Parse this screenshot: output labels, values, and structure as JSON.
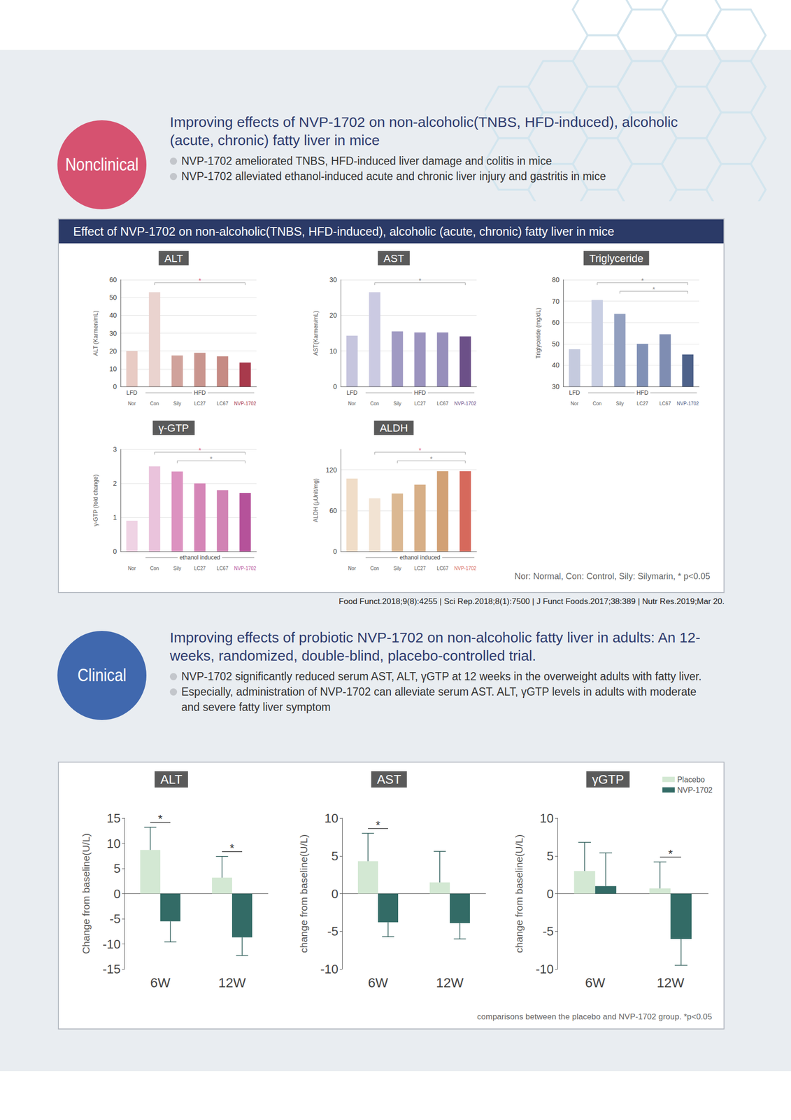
{
  "document": {
    "nonclinical": {
      "badge": "Nonclinical",
      "heading": "Improving effects of NVP-1702 on non-alcoholic(TNBS, HFD-induced), alcoholic (acute, chronic) fatty liver in mice",
      "bullets": [
        "NVP-1702 ameliorated TNBS, HFD-induced liver damage and colitis in mice",
        "NVP-1702 alleviated ethanol-induced acute and chronic liver injury and gastritis in mice"
      ],
      "panel_title": "Effect of NVP-1702 on non-alcoholic(TNBS, HFD-induced), alcoholic (acute, chronic) fatty liver in mice",
      "footnote": "Nor: Normal, Con: Control, Sily: Silymarin, * p<0.05",
      "references": "Food Funct.2018;9(8):4255 | Sci Rep.2018;8(1):7500 | J Funct Foods.2017;38:389 | Nutr Res.2019;Mar 20."
    },
    "clinical": {
      "badge": "Clinical",
      "heading": "Improving effects of probiotic NVP-1702 on non-alcoholic fatty liver in adults: An 12-weeks, randomized, double-blind, placebo-controlled trial.",
      "bullets": [
        "NVP-1702 significantly reduced serum AST, ALT, γGTP at 12 weeks in the overweight adults with fatty liver.",
        "Especially, administration of NVP-1702 can alleviate serum AST. ALT, γGTP levels in adults with moderate and severe fatty liver symptom"
      ],
      "footnote": "comparisons between the placebo and NVP-1702 group. *p<0.05"
    }
  },
  "chart_data": [
    {
      "type": "bar",
      "title": "ALT",
      "y_label": "ALT (Karmen/mL)",
      "categories": [
        "Nor",
        "Con",
        "Sily",
        "LC27",
        "LC67",
        "NVP-1702"
      ],
      "values": [
        20,
        53,
        17.5,
        19,
        17,
        13.5
      ],
      "colors": [
        "#e8cbc4",
        "#ead3cf",
        "#d0a29b",
        "#c9958e",
        "#c68b84",
        "#a83a4c"
      ],
      "ylim": [
        0,
        60
      ],
      "yticks": [
        0,
        10,
        20,
        30,
        40,
        50,
        60
      ],
      "grid": true,
      "groups": [
        {
          "label": "LFD",
          "categories": [
            "Nor"
          ]
        },
        {
          "label": "HFD",
          "categories": [
            "Con",
            "Sily",
            "LC27",
            "LC67",
            "NVP-1702"
          ]
        }
      ],
      "annotations": [
        {
          "text": "*",
          "from": "Con",
          "to": "NVP-1702",
          "color": "#e0607a"
        }
      ]
    },
    {
      "type": "bar",
      "title": "AST",
      "y_label": "AST(Karmen/mL)",
      "categories": [
        "Nor",
        "Con",
        "Sily",
        "LC27",
        "LC67",
        "NVP-1702"
      ],
      "values": [
        14.3,
        26.5,
        15.5,
        15.2,
        15.2,
        14.1
      ],
      "colors": [
        "#c6c5de",
        "#cbcae2",
        "#a09ac3",
        "#9c94bf",
        "#978fbb",
        "#6c5088"
      ],
      "ylim": [
        0,
        30
      ],
      "yticks": [
        0,
        10,
        20,
        30
      ],
      "grid": true,
      "groups": [
        {
          "label": "LFD",
          "categories": [
            "Nor"
          ]
        },
        {
          "label": "HFD",
          "categories": [
            "Con",
            "Sily",
            "LC27",
            "LC67",
            "NVP-1702"
          ]
        }
      ],
      "annotations": [
        {
          "text": "*",
          "from": "Con",
          "to": "NVP-1702",
          "color": "#888888"
        }
      ]
    },
    {
      "type": "bar",
      "title": "Triglyceride",
      "y_label": "Triglyceride (mg/dL)",
      "categories": [
        "Nor",
        "Con",
        "Sily",
        "LC27",
        "LC67",
        "NVP-1702"
      ],
      "values": [
        47.5,
        70.5,
        64,
        50,
        54.5,
        45
      ],
      "colors": [
        "#c5cade",
        "#c9cfe3",
        "#93a0c0",
        "#8191b6",
        "#7f8db2",
        "#4e628a"
      ],
      "ylim": [
        30,
        80
      ],
      "yticks": [
        30,
        40,
        50,
        60,
        70,
        80
      ],
      "grid": true,
      "groups": [
        {
          "label": "LFD",
          "categories": [
            "Nor"
          ]
        },
        {
          "label": "HFD",
          "categories": [
            "Con",
            "Sily",
            "LC27",
            "LC67",
            "NVP-1702"
          ]
        }
      ],
      "annotations": [
        {
          "text": "*",
          "from": "Con",
          "to": "NVP-1702",
          "color": "#888888"
        },
        {
          "text": "*",
          "from": "Sily",
          "to": "NVP-1702",
          "color": "#888888"
        }
      ]
    },
    {
      "type": "bar",
      "title": "γ-GTP",
      "y_label": "γ-GTP (fold change)",
      "categories": [
        "Nor",
        "Con",
        "Sily",
        "LC27",
        "LC67",
        "NVP-1702"
      ],
      "values": [
        0.9,
        2.5,
        2.35,
        2.0,
        1.8,
        1.72
      ],
      "colors": [
        "#efd3e4",
        "#eac3dc",
        "#dc92c0",
        "#d586b7",
        "#d183b4",
        "#b5529a"
      ],
      "ylim": [
        0,
        3
      ],
      "yticks": [
        0,
        1,
        2,
        3
      ],
      "grid": true,
      "groups": [
        {
          "label": "ethanol induced",
          "categories": [
            "Con",
            "Sily",
            "LC27",
            "LC67",
            "NVP-1702"
          ]
        }
      ],
      "annotations": [
        {
          "text": "*",
          "from": "Con",
          "to": "NVP-1702",
          "color": "#e0607a"
        },
        {
          "text": "*",
          "from": "Sily",
          "to": "NVP-1702",
          "color": "#888888"
        }
      ]
    },
    {
      "type": "bar",
      "title": "ALDH",
      "y_label": "ALDH (μUnit/mg)",
      "categories": [
        "Nor",
        "Con",
        "Sily",
        "LC27",
        "LC67",
        "NVP-1702"
      ],
      "values": [
        107,
        78,
        85,
        98,
        118,
        118
      ],
      "colors": [
        "#f0ddc8",
        "#f2e3d3",
        "#dbb892",
        "#d7af87",
        "#d2a175",
        "#d6695c"
      ],
      "ylim": [
        0,
        150
      ],
      "yticks": [
        0,
        60,
        120
      ],
      "grid": true,
      "groups": [
        {
          "label": "ethanol induced",
          "categories": [
            "Con",
            "Sily",
            "LC27",
            "LC67",
            "NVP-1702"
          ]
        }
      ],
      "annotations": [
        {
          "text": "*",
          "from": "Con",
          "to": "NVP-1702",
          "color": "#e0607a"
        },
        {
          "text": "*",
          "from": "Sily",
          "to": "NVP-1702",
          "color": "#888888"
        }
      ]
    },
    {
      "type": "bar",
      "title": "ALT",
      "y_label": "Change from baseline(U/L)",
      "categories": [
        "6W",
        "12W"
      ],
      "series": [
        {
          "name": "Placebo",
          "color": "#d3e8d3",
          "values": [
            8.7,
            3.2
          ],
          "errors": [
            4.5,
            4.2
          ]
        },
        {
          "name": "NVP-1702",
          "color": "#336b66",
          "values": [
            -5.5,
            -8.7
          ],
          "errors": [
            4.1,
            3.6
          ]
        }
      ],
      "ylim": [
        -15,
        15
      ],
      "yticks": [
        -15,
        -10,
        -5,
        0,
        5,
        10,
        15
      ],
      "grid": false,
      "annotations": [
        {
          "text": "*",
          "category": "6W"
        },
        {
          "text": "*",
          "category": "12W"
        }
      ]
    },
    {
      "type": "bar",
      "title": "AST",
      "y_label": "change from baseline(U/L)",
      "categories": [
        "6W",
        "12W"
      ],
      "series": [
        {
          "name": "Placebo",
          "color": "#d3e8d3",
          "values": [
            4.3,
            1.5
          ],
          "errors": [
            3.7,
            4.1
          ]
        },
        {
          "name": "NVP-1702",
          "color": "#336b66",
          "values": [
            -3.8,
            -3.9
          ],
          "errors": [
            1.9,
            2.1
          ]
        }
      ],
      "ylim": [
        -10,
        10
      ],
      "yticks": [
        -10,
        -5,
        0,
        5,
        10
      ],
      "grid": false,
      "annotations": [
        {
          "text": "*",
          "category": "6W"
        }
      ]
    },
    {
      "type": "bar",
      "title": "γGTP",
      "y_label": "change from baseline(U/L)",
      "categories": [
        "6W",
        "12W"
      ],
      "series": [
        {
          "name": "Placebo",
          "color": "#d3e8d3",
          "values": [
            3,
            0.7
          ],
          "errors": [
            3.8,
            3.5
          ]
        },
        {
          "name": "NVP-1702",
          "color": "#336b66",
          "values": [
            1,
            -6
          ],
          "errors": [
            4.4,
            3.5
          ]
        }
      ],
      "ylim": [
        -10,
        10
      ],
      "yticks": [
        -10,
        -5,
        0,
        5,
        10
      ],
      "grid": false,
      "legend": "top-right",
      "annotations": [
        {
          "text": "*",
          "category": "12W"
        }
      ]
    }
  ]
}
